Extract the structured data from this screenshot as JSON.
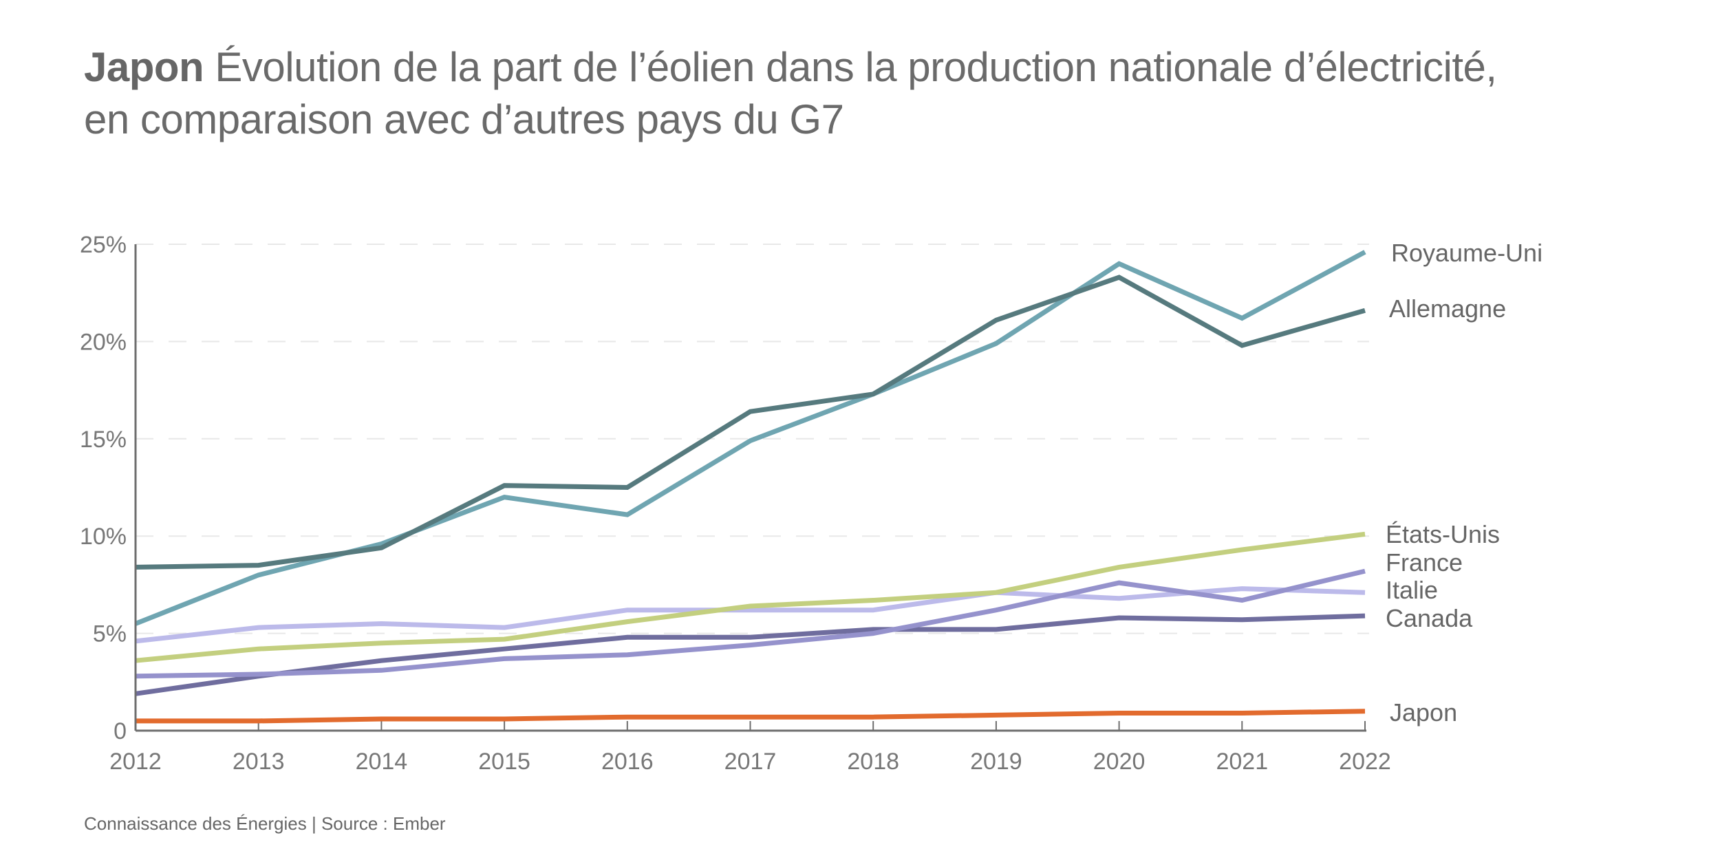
{
  "title": {
    "bold": "Japon",
    "line1": "Évolution de la part de l’éolien dans la production nationale d’électricité,",
    "line2": "en comparaison avec d’autres pays du G7"
  },
  "footer": "Connaissance des Énergies | Source : Ember",
  "chart_data": {
    "type": "line",
    "title": "Japon Évolution de la part de l’éolien dans la production nationale d’électricité, en comparaison avec d’autres pays du G7",
    "xlabel": "",
    "ylabel": "",
    "x": [
      2012,
      2013,
      2014,
      2015,
      2016,
      2017,
      2018,
      2019,
      2020,
      2021,
      2022
    ],
    "x_tick_labels": [
      "2012",
      "2013",
      "2014",
      "2015",
      "2016",
      "2017",
      "2018",
      "2019",
      "2020",
      "2021",
      "2022"
    ],
    "ylim": [
      0,
      25
    ],
    "y_ticks": [
      0,
      5,
      10,
      15,
      20,
      25
    ],
    "y_tick_labels": [
      "0",
      "5%",
      "10%",
      "15%",
      "20%",
      "25%"
    ],
    "grid": "horizontal dashed",
    "legend": "direct labels at right",
    "series": [
      {
        "name": "Royaume-Uni",
        "color": "#6fa5b1",
        "values": [
          5.5,
          8.0,
          9.6,
          12.0,
          11.1,
          14.9,
          17.3,
          19.9,
          24.0,
          21.2,
          24.6
        ]
      },
      {
        "name": "Allemagne",
        "color": "#567a7e",
        "values": [
          8.4,
          8.5,
          9.4,
          12.6,
          12.5,
          16.4,
          17.3,
          21.1,
          23.3,
          19.8,
          21.6
        ]
      },
      {
        "name": "États-Unis",
        "color": "#c3cf7f",
        "values": [
          3.6,
          4.2,
          4.5,
          4.7,
          5.6,
          6.4,
          6.7,
          7.1,
          8.4,
          9.3,
          10.1
        ]
      },
      {
        "name": "France",
        "color": "#9592cc",
        "values": [
          2.8,
          2.9,
          3.1,
          3.7,
          3.9,
          4.4,
          5.0,
          6.2,
          7.6,
          6.7,
          8.2
        ]
      },
      {
        "name": "Italie",
        "color": "#bcbaea",
        "values": [
          4.6,
          5.3,
          5.5,
          5.3,
          6.2,
          6.2,
          6.2,
          7.1,
          6.8,
          7.3,
          7.1
        ]
      },
      {
        "name": "Canada",
        "color": "#6f6d9e",
        "values": [
          1.9,
          2.8,
          3.6,
          4.2,
          4.8,
          4.8,
          5.2,
          5.2,
          5.8,
          5.7,
          5.9
        ]
      },
      {
        "name": "Japon",
        "color": "#e26b2e",
        "values": [
          0.5,
          0.5,
          0.6,
          0.6,
          0.7,
          0.7,
          0.7,
          0.8,
          0.9,
          0.9,
          1.0
        ]
      }
    ]
  }
}
